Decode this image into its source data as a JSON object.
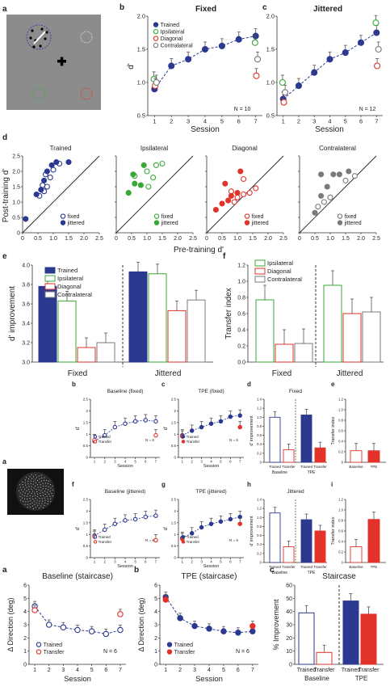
{
  "colors": {
    "trained": "#2b3990",
    "ipsi": "#39a935",
    "diag": "#e2332a",
    "contra": "#7a7a7a",
    "transfer": "#e2332a"
  },
  "panel_a": {
    "letter": "a"
  },
  "panel_b": {
    "letter": "b",
    "title": "Fixed",
    "xlabel": "Session",
    "ylabel": "d'",
    "n": "N = 10",
    "legend": [
      "Trained",
      "Ipsilateral",
      "Diagonal",
      "Contralateral"
    ],
    "xticks": [
      "1",
      "2",
      "3",
      "4",
      "5",
      "6",
      "7"
    ],
    "yticks": [
      "0.5",
      "1.0",
      "1.5",
      "2.0"
    ]
  },
  "panel_c": {
    "letter": "c",
    "title": "Jittered",
    "xlabel": "Session",
    "n": "N = 12",
    "xticks": [
      "1",
      "2",
      "3",
      "4",
      "5",
      "6",
      "7"
    ],
    "yticks": [
      "0.5",
      "1.0",
      "1.5",
      "2.0"
    ]
  },
  "panel_d": {
    "letter": "d",
    "ylabel": "Post-training d'",
    "xlabel": "Pre-training d'",
    "subtitles": [
      "Trained",
      "Ipsilateral",
      "Diagonal",
      "Contralateral"
    ],
    "legend": [
      "fixed",
      "jittered"
    ],
    "xticks": [
      "0",
      "0.5",
      "1.0",
      "1.5",
      "2.0",
      "2.5"
    ],
    "yticks": [
      "0",
      "0.5",
      "1.0",
      "1.5",
      "2.0",
      "2.5"
    ]
  },
  "panel_e": {
    "letter": "e",
    "ylabel": "d' improvement",
    "legend": [
      "Trained",
      "Ipsilateral",
      "Diagonal",
      "Contralateral"
    ],
    "groups": [
      "Fixed",
      "Jittered"
    ],
    "yticks": [
      "3.0",
      "3.2",
      "3.4",
      "3.6",
      "3.8",
      "4.0"
    ]
  },
  "panel_f": {
    "letter": "f",
    "ylabel": "Transfer index",
    "legend": [
      "Ipsilateral",
      "Diagonal",
      "Contralateral"
    ],
    "groups": [
      "Fixed",
      "Jittered"
    ],
    "yticks": [
      "0.0",
      "0.2",
      "0.4",
      "0.6",
      "0.8",
      "1.0",
      "1.2"
    ]
  },
  "fig2": {
    "a_letter": "a",
    "b": {
      "letter": "b",
      "title": "Baseline (fixed)",
      "legend": [
        "Trained",
        "Transfer"
      ],
      "n": "N = 6"
    },
    "c": {
      "letter": "c",
      "title": "TPE (fixed)",
      "legend": [
        "Trained",
        "Transfer"
      ],
      "n": "N = 6"
    },
    "d": {
      "letter": "d",
      "title": "Fixed",
      "ylabel": "d' improvement",
      "bar_labels": [
        "Trained",
        "Transfer",
        "Trained",
        "Transfer"
      ],
      "groups": [
        "Baseline",
        "TPE"
      ]
    },
    "e": {
      "letter": "e",
      "ylabel": "Transfer index",
      "bar_labels": [
        "Baseline",
        "TPE"
      ]
    },
    "f": {
      "letter": "f",
      "title": "Baseline (jittered)",
      "legend": [
        "Trained",
        "Transfer"
      ],
      "n": "N = 6"
    },
    "g": {
      "letter": "g",
      "title": "TPE (jittered)",
      "legend": [
        "Trained",
        "Transfer"
      ],
      "n": "N = 6"
    },
    "h": {
      "letter": "h",
      "title": "Jittered",
      "ylabel": "d' improvement",
      "bar_labels": [
        "Trained",
        "Transfer",
        "Trained",
        "Transfer"
      ],
      "groups": [
        "Baseline",
        "TPE"
      ]
    },
    "i": {
      "letter": "i",
      "ylabel": "Transfer index",
      "bar_labels": [
        "Baseline",
        "TPE"
      ]
    },
    "xlabel": "Session",
    "ylabel": "d'"
  },
  "fig3": {
    "a": {
      "letter": "a",
      "title": "Baseline (staircase)",
      "ylabel": "Δ Direction (deg)",
      "xlabel": "Session",
      "legend": [
        "Trained",
        "Transfer"
      ],
      "n": "N = 6"
    },
    "b": {
      "letter": "b",
      "title": "TPE (staircase)",
      "ylabel": "Δ Direction (deg)",
      "xlabel": "Session",
      "legend": [
        "Trained",
        "Transfer"
      ],
      "n": "N = 6"
    },
    "c": {
      "letter": "c",
      "title": "Staircase",
      "ylabel": "% Improvement",
      "bar_labels": [
        "Trained",
        "Transfer",
        "Trained",
        "Transfer"
      ],
      "groups": [
        "Baseline",
        "TPE"
      ],
      "yticks": [
        "0",
        "10",
        "20",
        "30",
        "40",
        "50",
        "60"
      ]
    },
    "xticks": [
      "1",
      "2",
      "3",
      "4",
      "5",
      "6",
      "7"
    ],
    "yticks": [
      "0",
      "1",
      "2",
      "3",
      "4",
      "5",
      "6"
    ]
  },
  "chart_data": [
    {
      "type": "line",
      "panel": "1b",
      "x": [
        1,
        2,
        3,
        4,
        5,
        6,
        7
      ],
      "ylim": [
        0.5,
        2.0
      ],
      "series": [
        {
          "name": "Trained",
          "values": [
            0.9,
            1.25,
            1.35,
            1.5,
            1.55,
            1.65,
            1.7
          ]
        },
        {
          "name": "Ipsilateral",
          "values": [
            1.05,
            null,
            null,
            null,
            null,
            null,
            1.6
          ]
        },
        {
          "name": "Diagonal",
          "values": [
            0.95,
            null,
            null,
            null,
            null,
            null,
            1.1
          ]
        },
        {
          "name": "Contralateral",
          "values": [
            1.0,
            null,
            null,
            null,
            null,
            null,
            1.35
          ]
        }
      ]
    },
    {
      "type": "line",
      "panel": "1c",
      "x": [
        1,
        2,
        3,
        4,
        5,
        6,
        7
      ],
      "ylim": [
        0.5,
        2.0
      ],
      "series": [
        {
          "name": "Trained",
          "values": [
            0.75,
            0.95,
            1.15,
            1.35,
            1.45,
            1.6,
            1.75
          ]
        },
        {
          "name": "Ipsilateral",
          "values": [
            1.0,
            null,
            null,
            null,
            null,
            null,
            1.9
          ]
        },
        {
          "name": "Diagonal",
          "values": [
            0.7,
            null,
            null,
            null,
            null,
            null,
            1.25
          ]
        },
        {
          "name": "Contralateral",
          "values": [
            0.85,
            null,
            null,
            null,
            null,
            null,
            1.5
          ]
        }
      ]
    },
    {
      "type": "scatter",
      "panel": "1d",
      "xlim": [
        0,
        2.5
      ],
      "ylim": [
        0,
        2.5
      ],
      "plots": [
        {
          "name": "Trained",
          "fixed": [
            [
              0.55,
              1.2
            ],
            [
              0.7,
              1.35
            ],
            [
              0.8,
              1.5
            ],
            [
              0.9,
              1.8
            ],
            [
              1.0,
              2.05
            ],
            [
              1.2,
              2.25
            ],
            [
              0.65,
              1.55
            ],
            [
              0.75,
              1.9
            ]
          ],
          "jittered": [
            [
              0.1,
              0.45
            ],
            [
              0.45,
              1.25
            ],
            [
              0.6,
              1.4
            ],
            [
              0.7,
              1.7
            ],
            [
              0.8,
              2.0
            ],
            [
              0.95,
              2.2
            ],
            [
              1.5,
              2.3
            ],
            [
              1.1,
              2.3
            ]
          ]
        },
        {
          "name": "Ipsilateral",
          "fixed": [
            [
              0.6,
              1.85
            ],
            [
              1.0,
              2.0
            ],
            [
              1.2,
              1.8
            ],
            [
              1.3,
              2.2
            ],
            [
              1.5,
              2.25
            ],
            [
              1.05,
              1.5
            ]
          ],
          "jittered": [
            [
              0.4,
              1.3
            ],
            [
              0.6,
              1.6
            ],
            [
              0.8,
              1.55
            ],
            [
              0.55,
              1.9
            ],
            [
              0.9,
              2.2
            ]
          ]
        },
        {
          "name": "Diagonal",
          "fixed": [
            [
              0.8,
              1.35
            ],
            [
              1.0,
              1.15
            ],
            [
              1.2,
              1.25
            ],
            [
              1.4,
              1.3
            ],
            [
              1.2,
              1.75
            ],
            [
              0.9,
              1.0
            ],
            [
              1.6,
              1.45
            ]
          ],
          "jittered": [
            [
              0.3,
              0.75
            ],
            [
              0.5,
              0.95
            ],
            [
              0.7,
              1.05
            ],
            [
              0.8,
              1.2
            ],
            [
              0.6,
              1.6
            ],
            [
              1.1,
              2.0
            ],
            [
              1.0,
              1.3
            ]
          ]
        },
        {
          "name": "Contralateral",
          "fixed": [
            [
              0.6,
              0.85
            ],
            [
              0.8,
              1.0
            ],
            [
              1.0,
              1.15
            ],
            [
              1.5,
              1.7
            ],
            [
              1.8,
              1.85
            ]
          ],
          "jittered": [
            [
              0.5,
              0.65
            ],
            [
              0.7,
              1.2
            ],
            [
              0.7,
              1.9
            ],
            [
              0.9,
              1.5
            ],
            [
              1.1,
              1.9
            ],
            [
              1.3,
              1.9
            ],
            [
              1.6,
              2.0
            ]
          ]
        }
      ]
    },
    {
      "type": "bar",
      "panel": "1e",
      "categories": [
        "Fixed",
        "Jittered"
      ],
      "ylim": [
        3.0,
        4.0
      ],
      "series": [
        {
          "name": "Trained",
          "values": [
            3.78,
            3.93
          ]
        },
        {
          "name": "Ipsilateral",
          "values": [
            3.63,
            3.91
          ]
        },
        {
          "name": "Diagonal",
          "values": [
            3.15,
            3.53
          ]
        },
        {
          "name": "Contralateral",
          "values": [
            3.2,
            3.64
          ]
        }
      ]
    },
    {
      "type": "bar",
      "panel": "1f",
      "categories": [
        "Fixed",
        "Jittered"
      ],
      "ylim": [
        0.0,
        1.2
      ],
      "series": [
        {
          "name": "Ipsilateral",
          "values": [
            0.77,
            0.95
          ]
        },
        {
          "name": "Diagonal",
          "values": [
            0.22,
            0.6
          ]
        },
        {
          "name": "Contralateral",
          "values": [
            0.23,
            0.62
          ]
        }
      ]
    },
    {
      "type": "line",
      "panel": "2b",
      "x": [
        1,
        2,
        3,
        4,
        5,
        6,
        7
      ],
      "ylim": [
        0,
        2.5
      ],
      "series": [
        {
          "name": "Trained",
          "values": [
            0.7,
            0.95,
            1.3,
            1.45,
            1.55,
            1.6,
            1.55
          ]
        },
        {
          "name": "Transfer",
          "values": [
            0.75,
            null,
            null,
            null,
            null,
            null,
            0.95
          ]
        }
      ]
    },
    {
      "type": "line",
      "panel": "2c",
      "x": [
        1,
        2,
        3,
        4,
        5,
        6,
        7
      ],
      "ylim": [
        0,
        2.5
      ],
      "series": [
        {
          "name": "Trained",
          "values": [
            0.95,
            1.15,
            1.3,
            1.45,
            1.55,
            1.75,
            1.8
          ]
        },
        {
          "name": "Transfer",
          "values": [
            0.9,
            null,
            null,
            null,
            null,
            null,
            1.3
          ]
        }
      ]
    },
    {
      "type": "bar",
      "panel": "2d",
      "categories": [
        "Baseline",
        "TPE"
      ],
      "ylim": [
        0,
        1.4
      ],
      "series": [
        {
          "name": "Trained",
          "values": [
            1.0,
            1.05
          ]
        },
        {
          "name": "Transfer",
          "values": [
            0.28,
            0.32
          ]
        }
      ]
    },
    {
      "type": "bar",
      "panel": "2e",
      "categories": [
        "Baseline",
        "TPE"
      ],
      "ylim": [
        0,
        1.2
      ],
      "values": [
        0.22,
        0.22
      ]
    },
    {
      "type": "line",
      "panel": "2f",
      "x": [
        1,
        2,
        3,
        4,
        5,
        6,
        7
      ],
      "ylim": [
        0,
        2.5
      ],
      "series": [
        {
          "name": "Trained",
          "values": [
            0.95,
            1.2,
            1.45,
            1.6,
            1.65,
            1.75,
            1.8
          ]
        },
        {
          "name": "Transfer",
          "values": [
            0.9,
            null,
            null,
            null,
            null,
            null,
            0.75
          ]
        }
      ]
    },
    {
      "type": "line",
      "panel": "2g",
      "x": [
        1,
        2,
        3,
        4,
        5,
        6,
        7
      ],
      "ylim": [
        0,
        2.5
      ],
      "series": [
        {
          "name": "Trained",
          "values": [
            0.85,
            1.05,
            1.3,
            1.45,
            1.55,
            1.65,
            1.75
          ]
        },
        {
          "name": "Transfer",
          "values": [
            0.8,
            null,
            null,
            null,
            null,
            null,
            1.45
          ]
        }
      ]
    },
    {
      "type": "bar",
      "panel": "2h",
      "categories": [
        "Baseline",
        "TPE"
      ],
      "ylim": [
        0,
        1.4
      ],
      "series": [
        {
          "name": "Trained",
          "values": [
            1.1,
            0.95
          ]
        },
        {
          "name": "Transfer",
          "values": [
            0.35,
            0.7
          ]
        }
      ]
    },
    {
      "type": "bar",
      "panel": "2i",
      "categories": [
        "Baseline",
        "TPE"
      ],
      "ylim": [
        0,
        1.2
      ],
      "values": [
        0.3,
        0.82
      ]
    },
    {
      "type": "line",
      "panel": "3a",
      "x": [
        1,
        2,
        3,
        4,
        5,
        6,
        7
      ],
      "ylim": [
        0,
        6
      ],
      "series": [
        {
          "name": "Trained",
          "values": [
            4.4,
            3.0,
            2.8,
            2.6,
            2.5,
            2.3,
            2.6
          ]
        },
        {
          "name": "Transfer",
          "values": [
            4.1,
            null,
            null,
            null,
            null,
            null,
            3.8
          ]
        }
      ]
    },
    {
      "type": "line",
      "panel": "3b",
      "x": [
        1,
        2,
        3,
        4,
        5,
        6,
        7
      ],
      "ylim": [
        0,
        6
      ],
      "series": [
        {
          "name": "Trained",
          "values": [
            5.1,
            3.5,
            2.9,
            2.7,
            2.5,
            2.4,
            2.5
          ]
        },
        {
          "name": "Transfer",
          "values": [
            4.9,
            null,
            null,
            null,
            null,
            null,
            2.9
          ]
        }
      ]
    },
    {
      "type": "bar",
      "panel": "3c",
      "categories": [
        "Baseline",
        "TPE"
      ],
      "ylim": [
        0,
        60
      ],
      "series": [
        {
          "name": "Trained",
          "values": [
            39,
            48
          ]
        },
        {
          "name": "Transfer",
          "values": [
            9,
            38
          ]
        }
      ]
    }
  ]
}
